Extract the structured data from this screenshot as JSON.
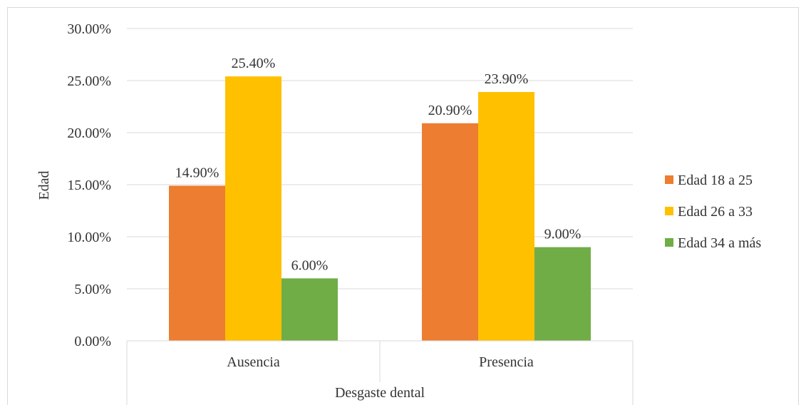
{
  "chart_data": {
    "type": "bar",
    "categories": [
      "Ausencia",
      "Presencia"
    ],
    "series": [
      {
        "name": "Edad 18 a 25",
        "values": [
          14.9,
          20.9
        ],
        "labels": [
          "14.90%",
          "20.90%"
        ],
        "color": "#ED7D31"
      },
      {
        "name": "Edad 26 a 33",
        "values": [
          25.4,
          23.9
        ],
        "labels": [
          "25.40%",
          "23.90%"
        ],
        "color": "#FFC000"
      },
      {
        "name": "Edad 34 a más",
        "values": [
          6.0,
          9.0
        ],
        "labels": [
          "6.00%",
          "9.00%"
        ],
        "color": "#70AD47"
      }
    ],
    "xlabel": "Desgaste dental",
    "ylabel": "Edad",
    "ylim": [
      0,
      30
    ],
    "yticks": [
      0,
      5,
      10,
      15,
      20,
      25,
      30
    ],
    "ytick_labels": [
      "0.00%",
      "5.00%",
      "10.00%",
      "15.00%",
      "20.00%",
      "25.00%",
      "30.00%"
    ],
    "grid": true,
    "legend_position": "right"
  }
}
